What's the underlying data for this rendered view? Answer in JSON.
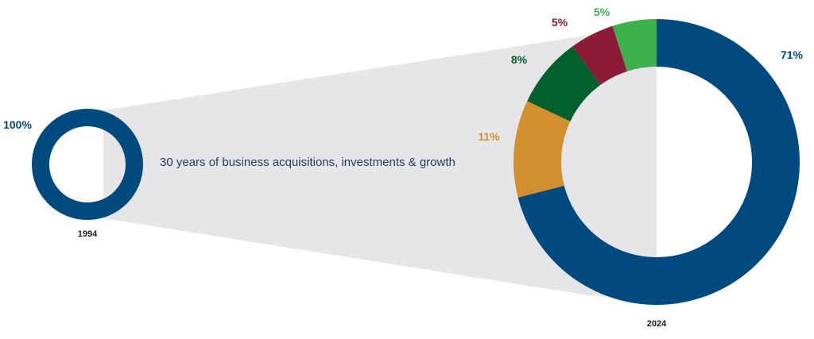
{
  "caption": "30 years of business acquisitions, investments & growth",
  "chart_data": [
    {
      "type": "pie",
      "variant": "donut",
      "year_label": "1994",
      "categories": [
        ""
      ],
      "values": [
        100
      ],
      "value_labels": [
        "100%"
      ],
      "colors": [
        "#004a80"
      ]
    },
    {
      "type": "pie",
      "variant": "donut",
      "year_label": "2024",
      "categories": [
        "",
        "",
        "",
        "",
        ""
      ],
      "values": [
        71,
        11,
        8,
        5,
        5
      ],
      "value_labels": [
        "71%",
        "11%",
        "8%",
        "5%",
        "5%"
      ],
      "colors": [
        "#004a80",
        "#d18f2e",
        "#035f2c",
        "#8c1a38",
        "#3cb04a"
      ]
    }
  ],
  "style": {
    "connector_color": "#e6e6e8",
    "year_label_color": "#1a1a1a",
    "caption_color": "#1e3a5c"
  }
}
